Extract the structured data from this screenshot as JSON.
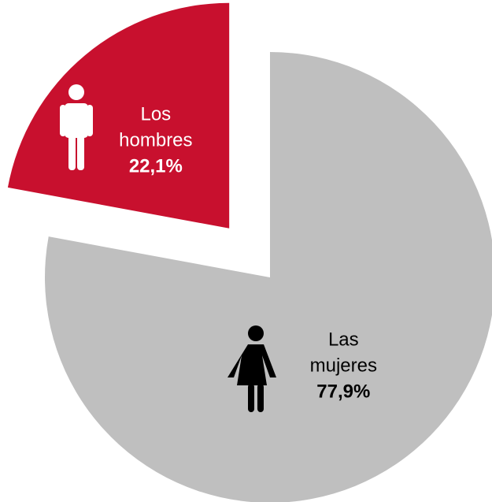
{
  "chart_data": {
    "type": "pie",
    "categories": [
      "Los hombres",
      "Las mujeres"
    ],
    "values": [
      22.1,
      77.9
    ],
    "value_labels": [
      "22,1%",
      "77,9%"
    ],
    "colors": [
      "#c8102e",
      "#bfbfbf"
    ]
  }
}
